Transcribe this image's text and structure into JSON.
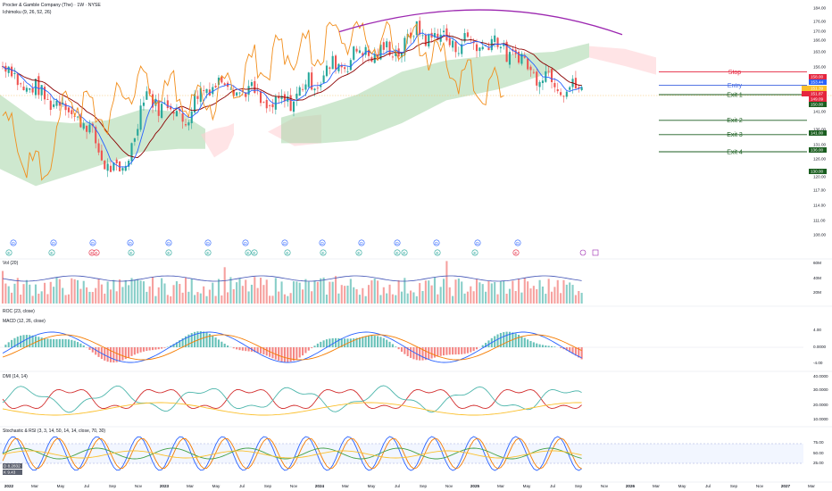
{
  "header": {
    "symbol_line": "Procter & Gamble Company (The) · 1W · NYSE",
    "indicator_line": "Ichimoku (9, 26, 52, 26)"
  },
  "panes": {
    "volume": "Vol (20)",
    "roc": "ROC (23, close)",
    "macd": "MACD (12, 26, close)",
    "dmi": "DMI (14, 14)",
    "stoch_rsi": "Stochastic & RSI (3, 3, 14, 50, 14, 14, close, 70, 30)"
  },
  "colors": {
    "stop": "#e5253e",
    "entry": "#3d63e0",
    "exit": "#1b5e20",
    "price_up": "#26a69a",
    "price_down": "#ef5350",
    "cloud_green": "#a5d6a7",
    "cloud_red": "#ffcdd2",
    "arc": "#9c27b0",
    "chikou": "#f28e1c",
    "tenkan": "#2962ff",
    "kijun": "#8b0000"
  },
  "price_axis_ticks": [
    "184.00",
    "176.00",
    "170.00",
    "166.00",
    "163.00",
    "156.00",
    "150.00",
    "145.00",
    "141.00",
    "136.00",
    "131.00",
    "126.00",
    "120.00",
    "117.00",
    "114.00",
    "111.00",
    "108.00"
  ],
  "price_badges": [
    {
      "text": "158.00",
      "color": "#e5253e"
    },
    {
      "text": "153.44",
      "color": "#2962ff"
    },
    {
      "text": "151.39",
      "color": "#fbc02d"
    },
    {
      "text": "151.87",
      "color": "#e5253e"
    },
    {
      "text": "149.09",
      "color": "#e5253e"
    },
    {
      "text": "150.00",
      "color": "#1b5e20"
    },
    {
      "text": "141.00",
      "color": "#1b5e20"
    },
    {
      "text": "136.00",
      "color": "#1b5e20"
    },
    {
      "text": "130.00",
      "color": "#1b5e20"
    }
  ],
  "levels": [
    {
      "label": "Stop",
      "value": 158.0,
      "color": "#e5253e"
    },
    {
      "label": "Entry",
      "value": 153.0,
      "color": "#3d63e0"
    },
    {
      "label": "Exit 1",
      "value": 150.0,
      "color": "#1b5e20"
    },
    {
      "label": "Exit 2",
      "value": 141.0,
      "color": "#1b5e20"
    },
    {
      "label": "Exit 3",
      "value": 136.0,
      "color": "#1b5e20"
    },
    {
      "label": "Exit 4",
      "value": 130.0,
      "color": "#1b5e20"
    }
  ],
  "x_axis_labels": [
    "2022",
    "Mar",
    "May",
    "Jul",
    "Sep",
    "Nov",
    "2023",
    "Mar",
    "May",
    "Jul",
    "Sep",
    "Nov",
    "2024",
    "Mar",
    "May",
    "Jul",
    "Sep",
    "Nov",
    "2025",
    "Mar",
    "May",
    "Jul",
    "Sep",
    "Nov",
    "2026",
    "Mar",
    "May",
    "Jul",
    "Sep",
    "Nov",
    "2027",
    "Mar"
  ],
  "vol_axis": [
    "60M",
    "40M",
    "20M"
  ],
  "macd_axis": [
    "4.00",
    "0.0000",
    "-4.00"
  ],
  "dmi_axis": [
    "40.0000",
    "30.0000",
    "20.0000",
    "10.0000"
  ],
  "stoch_axis": [
    "75.00",
    "50.00",
    "25.00"
  ],
  "stoch_badges": [
    "D 8.2832",
    "K 9.43"
  ],
  "events": {
    "dividends": [
      "D",
      "D",
      "D",
      "D",
      "D",
      "D",
      "D",
      "D",
      "D",
      "D",
      "D",
      "D",
      "D",
      "D"
    ],
    "earnings": [
      "E",
      "E",
      "E",
      "E",
      "E",
      "E",
      "E",
      "E",
      "E",
      "E",
      "E",
      "E",
      "E",
      "E",
      "E",
      "E",
      "E"
    ]
  },
  "chart_data": {
    "type": "candlestick",
    "title": "Procter & Gamble Company (The) · 1W · NYSE",
    "indicators": [
      "Ichimoku (9, 26, 52, 26)",
      "Vol (20)",
      "ROC (23, close)",
      "MACD (12, 26, close)",
      "DMI (14, 14)",
      "Stochastic & RSI (3, 3, 14, 50, 14, 14, close, 70, 30)"
    ],
    "x_range": [
      "2022",
      "2027"
    ],
    "y_range": [
      108,
      184
    ],
    "price_anchors": [
      {
        "date": "2022-01",
        "close": 160
      },
      {
        "date": "2022-03",
        "close": 152
      },
      {
        "date": "2022-05",
        "close": 148
      },
      {
        "date": "2022-07",
        "close": 142
      },
      {
        "date": "2022-09",
        "close": 126
      },
      {
        "date": "2022-10",
        "close": 120
      },
      {
        "date": "2022-12",
        "close": 150
      },
      {
        "date": "2023-03",
        "close": 142
      },
      {
        "date": "2023-05",
        "close": 155
      },
      {
        "date": "2023-07",
        "close": 153
      },
      {
        "date": "2023-10",
        "close": 145
      },
      {
        "date": "2024-01",
        "close": 155
      },
      {
        "date": "2024-04",
        "close": 164
      },
      {
        "date": "2024-07",
        "close": 165
      },
      {
        "date": "2024-09",
        "close": 172
      },
      {
        "date": "2024-12",
        "close": 168
      },
      {
        "date": "2025-03",
        "close": 168
      },
      {
        "date": "2025-06",
        "close": 158
      },
      {
        "date": "2025-08",
        "close": 154
      },
      {
        "date": "2025-09",
        "close": 151
      }
    ],
    "trade_levels": {
      "stop": 158.0,
      "entry": 153.0,
      "exit_1": 150.0,
      "exit_2": 141.0,
      "exit_3": 136.0,
      "exit_4": 130.0
    }
  }
}
